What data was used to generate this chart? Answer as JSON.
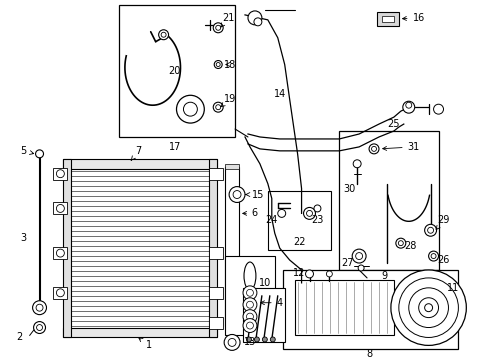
{
  "bg_color": "#ffffff",
  "lc": "#000000",
  "figsize": [
    4.89,
    3.6
  ],
  "dpi": 100
}
